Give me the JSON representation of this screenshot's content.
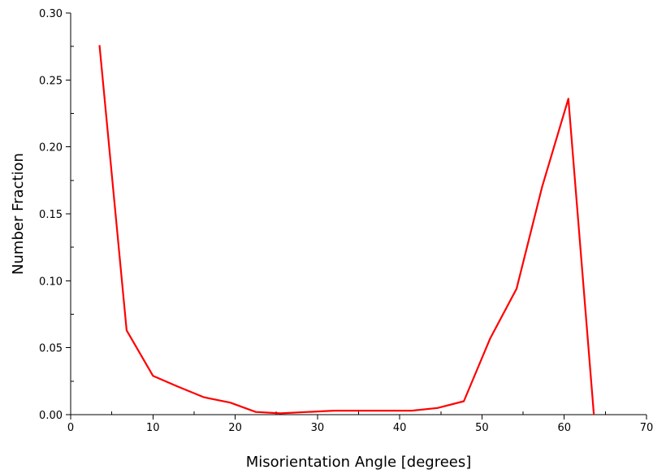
{
  "chart_data": {
    "type": "line",
    "title": "",
    "xlabel": "Misorientation Angle [degrees]",
    "ylabel": "Number Fraction",
    "xlim": [
      0,
      70
    ],
    "ylim": [
      0,
      0.3
    ],
    "x_ticks": [
      0,
      10,
      20,
      30,
      40,
      50,
      60,
      70
    ],
    "x_tick_labels": [
      "0",
      "10",
      "20",
      "30",
      "40",
      "50",
      "60",
      "70"
    ],
    "y_ticks": [
      0,
      0.05,
      0.1,
      0.15,
      0.2,
      0.25,
      0.3
    ],
    "y_tick_labels": [
      "0.00",
      "0.05",
      "0.10",
      "0.15",
      "0.20",
      "0.25",
      "0.30"
    ],
    "grid": false,
    "legend": "none",
    "series": [
      {
        "color": "#ff0000",
        "x": [
          3.5,
          6.8,
          10.0,
          13.0,
          16.2,
          19.4,
          22.5,
          25.5,
          28.8,
          32.0,
          35.2,
          38.3,
          41.5,
          44.6,
          47.8,
          51.0,
          54.2,
          57.3,
          60.5,
          63.6
        ],
        "y": [
          0.276,
          0.063,
          0.029,
          0.021,
          0.013,
          0.009,
          0.002,
          0.001,
          0.002,
          0.003,
          0.003,
          0.003,
          0.003,
          0.005,
          0.01,
          0.057,
          0.094,
          0.17,
          0.236,
          0.0
        ]
      }
    ]
  }
}
